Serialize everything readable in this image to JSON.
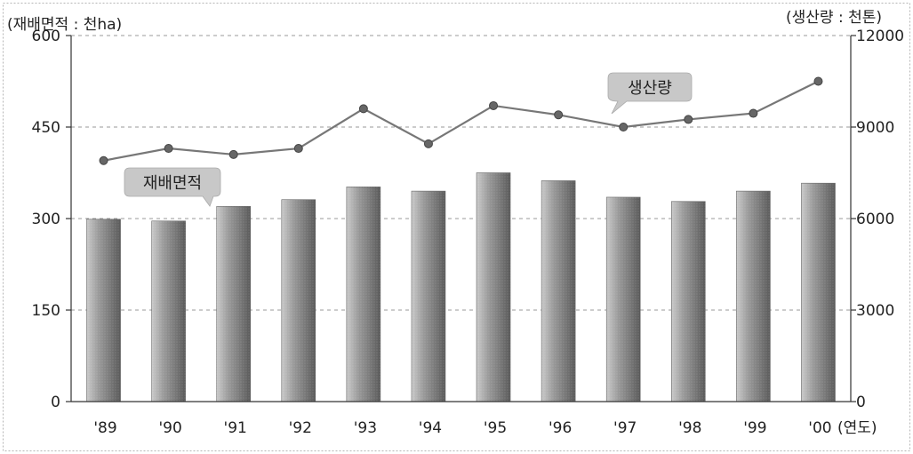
{
  "chart_data": {
    "type": "bar",
    "categories": [
      "'89",
      "'90",
      "'91",
      "'92",
      "'93",
      "'94",
      "'95",
      "'96",
      "'97",
      "'98",
      "'99",
      "'00"
    ],
    "left_axis_unit": "(재배면적 : 천ha)",
    "right_axis_unit": "(생산량 : 천톤)",
    "x_unit": "(연도)",
    "left_ticks": [
      "0",
      "150",
      "300",
      "450",
      "600"
    ],
    "right_ticks": [
      "0",
      "3000",
      "6000",
      "9000",
      "12000"
    ],
    "ylim_left": [
      0,
      600
    ],
    "ylim_right": [
      0,
      12000
    ],
    "grid": "horizontal dashed",
    "series": [
      {
        "name": "재배면적",
        "type": "bar",
        "axis": "left",
        "color": "#8c8c8c",
        "values": [
          299,
          296,
          320,
          331,
          352,
          345,
          375,
          362,
          335,
          328,
          345,
          358
        ]
      },
      {
        "name": "생산량",
        "type": "line",
        "axis": "right",
        "color": "#777777",
        "values": [
          7900,
          8300,
          8100,
          8300,
          9600,
          8450,
          9700,
          9400,
          9000,
          9250,
          9450,
          10500
        ]
      }
    ]
  }
}
